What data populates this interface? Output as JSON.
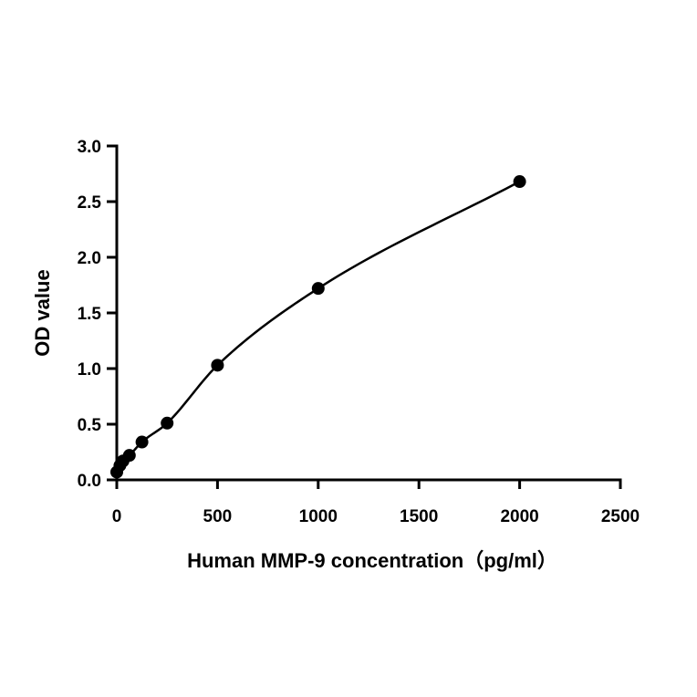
{
  "chart_data": {
    "type": "scatter",
    "title": "",
    "xlabel": "Human MMP-9 concentration（pg/ml）",
    "ylabel": "OD value",
    "xlim": [
      0,
      2500
    ],
    "ylim": [
      0,
      3.0
    ],
    "xticks": [
      "0",
      "500",
      "1000",
      "1500",
      "2000",
      "2500"
    ],
    "yticks": [
      "0.0",
      "0.5",
      "1.0",
      "1.5",
      "2.0",
      "2.5",
      "3.0"
    ],
    "grid": false,
    "legend": "none",
    "fit_curve": "smooth",
    "series": [
      {
        "x": [
          0,
          15.6,
          31.25,
          62.5,
          125,
          250,
          500,
          1000,
          2000
        ],
        "y": [
          0.07,
          0.13,
          0.17,
          0.22,
          0.34,
          0.51,
          1.03,
          1.72,
          2.68
        ]
      }
    ],
    "colors": {
      "marker": "#000000",
      "line": "#000000"
    }
  }
}
